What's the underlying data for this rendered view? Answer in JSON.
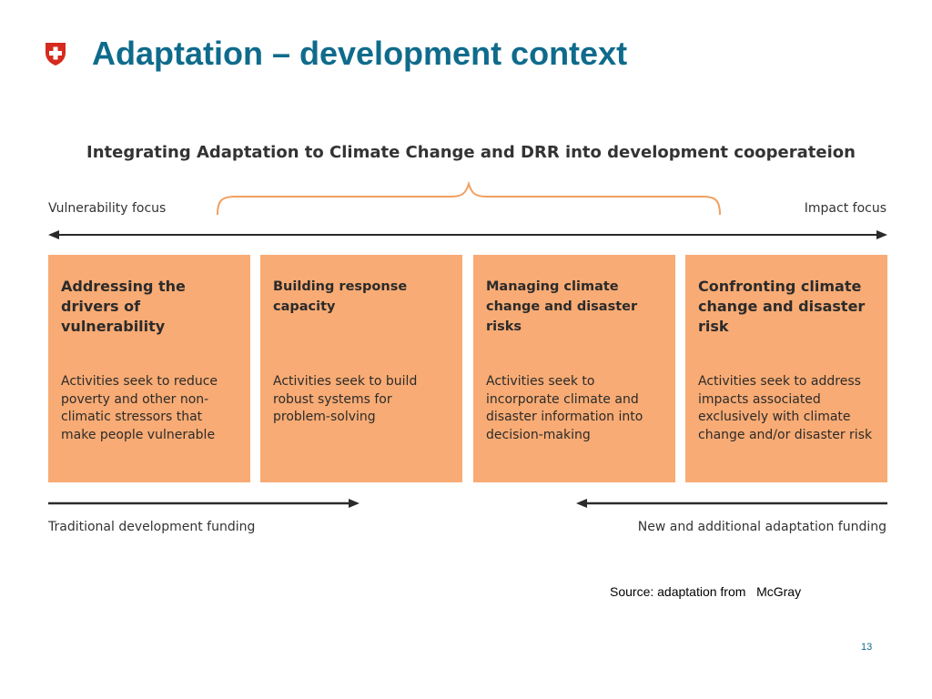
{
  "slide": {
    "title": "Adaptation – development context",
    "page_number": "13",
    "source": "Source: adaptation from   McGray"
  },
  "colors": {
    "title": "#0f6b8c",
    "logo_red": "#d52b1e",
    "box_fill": "#f8ab74",
    "brace": "#f0a060",
    "text": "#333333"
  },
  "icons": {
    "logo": "swiss-cross-shield-icon"
  },
  "figure": {
    "title": "Integrating Adaptation to Climate Change and DRR into development cooperateion",
    "left_focus": "Vulnerability focus",
    "right_focus": "Impact focus",
    "boxes": [
      {
        "heading": "Addressing the drivers of vulnerability",
        "body": "Activities seek to reduce poverty and other non-climatic stressors that make people vulnerable"
      },
      {
        "heading": "Building response capacity",
        "body": "Activities seek to build robust systems for problem-solving"
      },
      {
        "heading": "Managing climate change and disaster risks",
        "body": "Activities seek to incorporate climate and disaster information into decision-making"
      },
      {
        "heading": "Confronting climate change and disaster risk",
        "body": "Activities seek to address impacts associated exclusively with climate change and/or disaster risk"
      }
    ],
    "left_funding": "Traditional development funding",
    "right_funding": "New and additional adaptation funding"
  }
}
